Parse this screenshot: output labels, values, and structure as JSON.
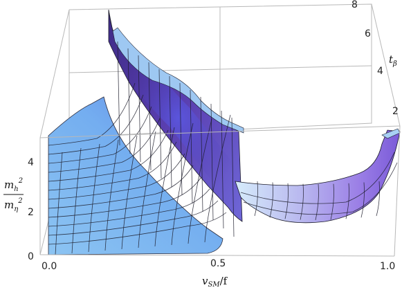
{
  "chart_data": {
    "type": "surface3d",
    "x_axis": {
      "label": "v",
      "label_sub": "SM",
      "label_tail": "/f",
      "range": [
        0.0,
        1.0
      ],
      "ticks": [
        "0.0",
        "0.5",
        "1.0"
      ]
    },
    "y_axis": {
      "label": "t",
      "label_sub": "β",
      "range": [
        1,
        8
      ],
      "ticks": [
        "2",
        "4",
        "6",
        "8"
      ]
    },
    "z_axis": {
      "label_num": "m",
      "label_num_sub": "h",
      "label_den": "m",
      "label_den_sub": "η",
      "range": [
        0,
        5
      ],
      "ticks": [
        "0",
        "2",
        "4"
      ]
    },
    "surface": {
      "description_points": [
        {
          "x": 0.0,
          "t": 1,
          "z": 0.2
        },
        {
          "x": 0.0,
          "t": 8,
          "z": 4.5
        },
        {
          "x": 0.3,
          "t": 1,
          "z": 0.6
        },
        {
          "x": 0.35,
          "t": 1,
          "z": 5.0
        },
        {
          "x": 0.5,
          "t": 1,
          "z": 0.0
        },
        {
          "x": 0.7,
          "t": 1,
          "z": 1.0
        },
        {
          "x": 1.0,
          "t": 1,
          "z": 4.5
        }
      ]
    },
    "colors": {
      "low": "#9ecbf2",
      "mid": "#6a6ee0",
      "high": "#4a2a9a"
    }
  }
}
